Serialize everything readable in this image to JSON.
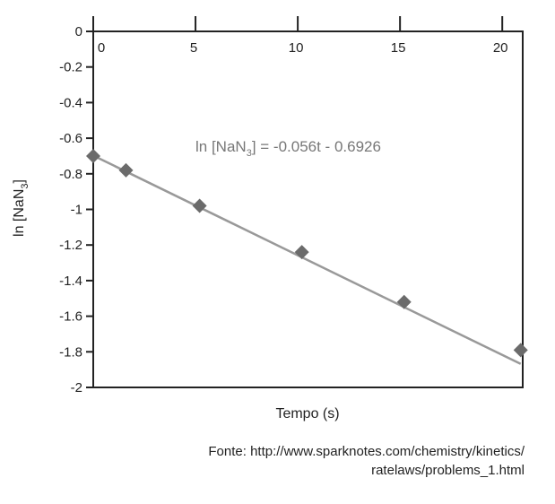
{
  "chart_data": {
    "type": "scatter",
    "xlabel": "Tempo (s)",
    "ylabel_main": "ln [NaN",
    "ylabel_sub": "3",
    "ylabel_end": "]",
    "xlim": [
      0,
      21
    ],
    "ylim": [
      -2,
      0
    ],
    "xticks": [
      0,
      5,
      10,
      15,
      20
    ],
    "xtick_labels": [
      "0",
      "5",
      "10",
      "15",
      "20"
    ],
    "yticks": [
      0,
      -0.2,
      -0.4,
      -0.6,
      -0.8,
      -1,
      -1.2,
      -1.4,
      -1.6,
      -1.8,
      -2
    ],
    "ytick_labels": [
      "0",
      "-0.2",
      "-0.4",
      "-0.6",
      "-0.8",
      "-1",
      "-1.2",
      "-1.4",
      "-1.6",
      "-1.8",
      "-2"
    ],
    "x_axis_position": "top",
    "grid": false,
    "points": [
      {
        "x": 0,
        "y": -0.7
      },
      {
        "x": 1.6,
        "y": -0.78
      },
      {
        "x": 5.2,
        "y": -0.98
      },
      {
        "x": 10.2,
        "y": -1.24
      },
      {
        "x": 15.2,
        "y": -1.52
      },
      {
        "x": 20.9,
        "y": -1.79
      }
    ],
    "trendline": {
      "slope": -0.056,
      "intercept": -0.6926
    },
    "equation": {
      "prefix": "ln [NaN",
      "sub": "3",
      "suffix": "] = -0.056t - 0.6926"
    },
    "colors": {
      "markers": "#6b6b6b",
      "line": "#999999",
      "axes": "#222222",
      "equation": "#777777"
    }
  },
  "source": {
    "line1": "Fonte: http://www.sparknotes.com/chemistry/kinetics/",
    "line2": "ratelaws/problems_1.html"
  }
}
